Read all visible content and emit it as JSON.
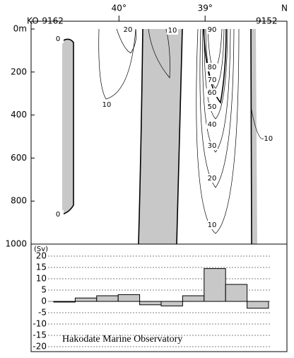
{
  "section": {
    "station_left": "KO-9162",
    "station_right": "9152",
    "north": "N",
    "xlim": [
      41.02,
      38.05
    ],
    "lat_ticks": [
      {
        "value": 40,
        "label": "40°"
      },
      {
        "value": 39,
        "label": "39°"
      }
    ],
    "ylim": [
      0,
      1000
    ],
    "depth_ticks": [
      {
        "value": 0,
        "label": "0m"
      },
      200,
      400,
      600,
      800,
      1000
    ],
    "contour_labels": [
      0,
      20,
      10,
      10,
      90,
      80,
      70,
      60,
      50,
      40,
      30,
      20,
      10,
      -10,
      0
    ]
  },
  "chart_data": {
    "type": "bar",
    "y_label": "(Sv)",
    "categories": [
      null,
      null,
      null,
      null,
      null,
      null,
      null,
      null,
      null,
      null
    ],
    "values": [
      -0.3,
      1.5,
      2.5,
      3,
      -1.5,
      -2,
      2.5,
      14.5,
      7.5,
      -3
    ],
    "color": "#c8c8c8",
    "ylim": [
      -20,
      20
    ],
    "yticks": [
      -20,
      -15,
      -10,
      -5,
      0,
      5,
      10,
      15,
      20
    ],
    "grid": true,
    "annotation": "Hakodate Marine Observatory"
  }
}
